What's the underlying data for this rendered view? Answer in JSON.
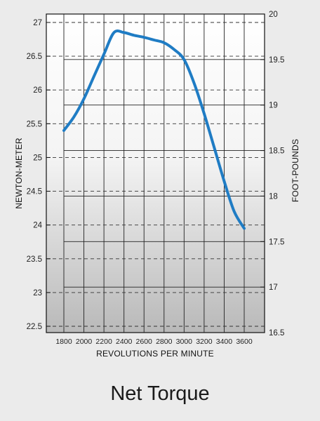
{
  "caption": "Net Torque",
  "chart_data": {
    "type": "line",
    "title": "Net Torque",
    "xlabel": "REVOLUTIONS PER MINUTE",
    "ylabel": "NEWTON-METER",
    "y2label": "FOOT-POUNDS",
    "x_ticks": [
      "1800",
      "2000",
      "2200",
      "2400",
      "2600",
      "2800",
      "3000",
      "3200",
      "3400",
      "3600"
    ],
    "x_tick_values": [
      1800,
      2000,
      2200,
      2400,
      2600,
      2800,
      3000,
      3200,
      3400,
      3600
    ],
    "y_ticks": [
      "22.5",
      "23",
      "23.5",
      "24",
      "24.5",
      "25",
      "25.5",
      "26",
      "26.5",
      "27"
    ],
    "y_tick_values": [
      22.5,
      23,
      23.5,
      24,
      24.5,
      25,
      25.5,
      26,
      26.5,
      27
    ],
    "y2_ticks": [
      "16.5",
      "17",
      "17.5",
      "18",
      "18.5",
      "19",
      "19.5",
      "20"
    ],
    "y2_tick_values": [
      16.5,
      17,
      17.5,
      18,
      18.5,
      19,
      19.5,
      20
    ],
    "xlim": [
      1700,
      3800
    ],
    "ylim": [
      22.4,
      27.2
    ],
    "y2lim": [
      16.5,
      20
    ],
    "grid": true,
    "line_color": "#1f7cc4",
    "series": [
      {
        "x": [
          1800,
          1900,
          2000,
          2100,
          2200,
          2300,
          2400,
          2500,
          2600,
          2700,
          2800,
          2900,
          3000,
          3100,
          3200,
          3300,
          3400,
          3500,
          3600
        ],
        "values": [
          25.4,
          25.6,
          25.87,
          26.2,
          26.53,
          26.85,
          26.85,
          26.81,
          26.78,
          26.74,
          26.7,
          26.6,
          26.45,
          26.1,
          25.65,
          25.15,
          24.65,
          24.2,
          23.95
        ]
      }
    ]
  }
}
